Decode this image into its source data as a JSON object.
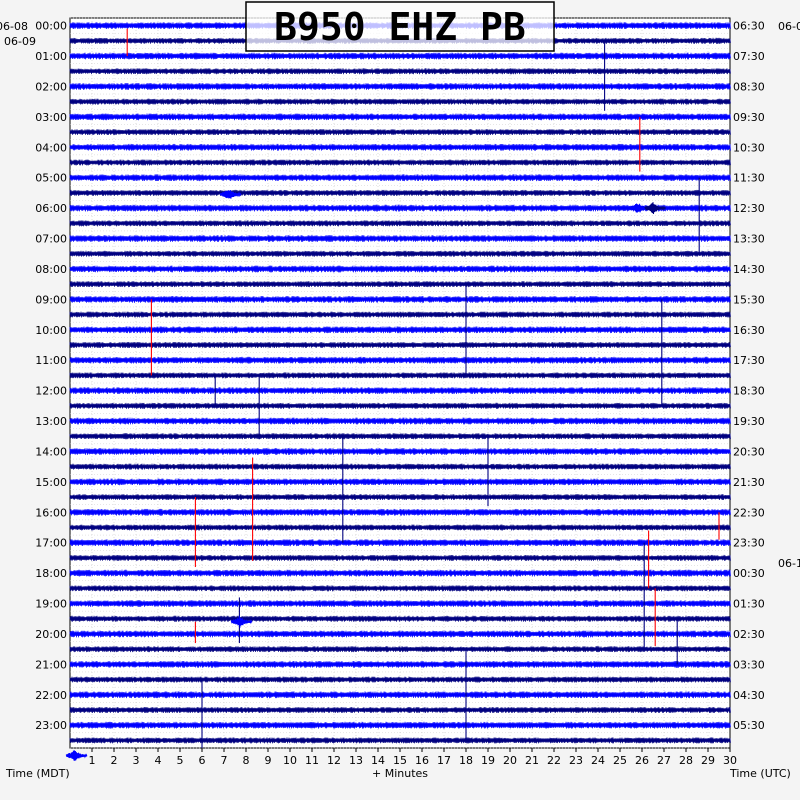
{
  "chart_data": {
    "type": "helicorder",
    "title": "B950 EHZ PB",
    "xlabel": "+ Minutes",
    "left_axis_label": "Time (MDT)",
    "right_axis_label": "Time (UTC)",
    "xlim": [
      0,
      30
    ],
    "x_ticks": [
      "1",
      "2",
      "3",
      "4",
      "5",
      "6",
      "7",
      "8",
      "9",
      "10",
      "11",
      "12",
      "13",
      "14",
      "15",
      "16",
      "17",
      "18",
      "19",
      "20",
      "21",
      "22",
      "23",
      "24",
      "25",
      "26",
      "27",
      "28",
      "29",
      "30"
    ],
    "trace_count": 48,
    "trace_minutes": 30,
    "trace_colors": [
      "#0000ff",
      "#000080",
      "#0000ff",
      "#000080"
    ],
    "event_color": "#ff0000",
    "left_date_labels": [
      "06-08",
      "06-09"
    ],
    "right_date_labels": [
      "06-0",
      "06-1"
    ],
    "left_time_labels": [
      "00:00",
      "01:00",
      "02:00",
      "03:00",
      "04:00",
      "05:00",
      "06:00",
      "07:00",
      "08:00",
      "09:00",
      "10:00",
      "11:00",
      "12:00",
      "13:00",
      "14:00",
      "15:00",
      "16:00",
      "17:00",
      "18:00",
      "19:00",
      "20:00",
      "21:00",
      "22:00",
      "23:00"
    ],
    "right_time_labels": [
      "06:30",
      "07:30",
      "08:30",
      "09:30",
      "10:30",
      "11:30",
      "12:30",
      "13:30",
      "14:30",
      "15:30",
      "16:30",
      "17:30",
      "18:30",
      "19:30",
      "20:30",
      "21:30",
      "22:30",
      "23:30",
      "00:30",
      "01:30",
      "02:30",
      "03:30",
      "04:30",
      "05:30"
    ],
    "grid": true,
    "events": [
      {
        "minute": 2.6,
        "hour_start": 0.1,
        "hour_end": 1.0,
        "color": "#ff0000"
      },
      {
        "minute": 3.7,
        "hour_start": 9.0,
        "hour_end": 11.5,
        "color": "#ff0000"
      },
      {
        "minute": 5.7,
        "hour_start": 15.5,
        "hour_end": 17.8,
        "color": "#ff0000"
      },
      {
        "minute": 5.7,
        "hour_start": 19.6,
        "hour_end": 20.3,
        "color": "#ff0000"
      },
      {
        "minute": 8.3,
        "hour_start": 14.2,
        "hour_end": 17.6,
        "color": "#ff0000"
      },
      {
        "minute": 25.9,
        "hour_start": 3.0,
        "hour_end": 4.8,
        "color": "#ff0000"
      },
      {
        "minute": 26.3,
        "hour_start": 16.6,
        "hour_end": 18.5,
        "color": "#ff0000"
      },
      {
        "minute": 26.6,
        "hour_start": 18.5,
        "hour_end": 20.4,
        "color": "#ff0000"
      },
      {
        "minute": 29.5,
        "hour_start": 16.0,
        "hour_end": 16.9,
        "color": "#ff0000"
      },
      {
        "minute": 6.6,
        "hour_start": 11.5,
        "hour_end": 12.5,
        "color": "#000080"
      },
      {
        "minute": 7.7,
        "hour_start": 18.8,
        "hour_end": 20.3,
        "color": "#000080"
      },
      {
        "minute": 8.6,
        "hour_start": 11.5,
        "hour_end": 13.6,
        "color": "#000080"
      },
      {
        "minute": 12.4,
        "hour_start": 13.5,
        "hour_end": 17.0,
        "color": "#000080"
      },
      {
        "minute": 18.0,
        "hour_start": 8.5,
        "hour_end": 11.5,
        "color": "#000080"
      },
      {
        "minute": 18.0,
        "hour_start": 20.5,
        "hour_end": 23.5,
        "color": "#000080"
      },
      {
        "minute": 19.0,
        "hour_start": 13.5,
        "hour_end": 15.8,
        "color": "#000080"
      },
      {
        "minute": 24.3,
        "hour_start": 0.5,
        "hour_end": 2.8,
        "color": "#000080"
      },
      {
        "minute": 26.1,
        "hour_start": 17.0,
        "hour_end": 20.5,
        "color": "#000080"
      },
      {
        "minute": 26.9,
        "hour_start": 9.0,
        "hour_end": 12.5,
        "color": "#000080"
      },
      {
        "minute": 27.6,
        "hour_start": 19.5,
        "hour_end": 21.0,
        "color": "#000080"
      },
      {
        "minute": 28.6,
        "hour_start": 5.0,
        "hour_end": 7.5,
        "color": "#000080"
      },
      {
        "minute": 6.0,
        "hour_start": 21.5,
        "hour_end": 23.8,
        "color": "#000080"
      }
    ],
    "bursts": [
      {
        "minute": 7.2,
        "hour": 5.55,
        "color": "#0000ff"
      },
      {
        "minute": 25.8,
        "hour": 6.0,
        "color": "#0000ff"
      },
      {
        "minute": 26.5,
        "hour": 6.0,
        "color": "#000080"
      },
      {
        "minute": 7.7,
        "hour": 19.6,
        "color": "#0000ff"
      },
      {
        "minute": 0.2,
        "hour": 24.0,
        "color": "#0000ff"
      }
    ]
  }
}
